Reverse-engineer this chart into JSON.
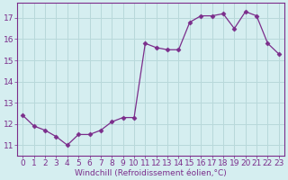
{
  "x": [
    0,
    1,
    2,
    3,
    4,
    5,
    6,
    7,
    8,
    9,
    10,
    11,
    12,
    13,
    14,
    15,
    16,
    17,
    18,
    19,
    20,
    21,
    22,
    23
  ],
  "y": [
    12.4,
    11.9,
    11.7,
    11.4,
    11.0,
    11.5,
    11.5,
    11.7,
    12.1,
    12.3,
    12.3,
    15.8,
    15.6,
    15.5,
    15.5,
    16.8,
    17.1,
    17.1,
    17.2,
    16.5,
    17.3,
    17.1,
    15.8,
    15.3
  ],
  "line_color": "#7b2d8b",
  "marker": "D",
  "marker_size": 2.5,
  "bg_color": "#d5eef0",
  "grid_color": "#b8d8da",
  "xlabel": "Windchill (Refroidissement éolien,°C)",
  "ylim": [
    10.5,
    17.7
  ],
  "xlim": [
    -0.5,
    23.5
  ],
  "yticks": [
    11,
    12,
    13,
    14,
    15,
    16,
    17
  ],
  "xticks": [
    0,
    1,
    2,
    3,
    4,
    5,
    6,
    7,
    8,
    9,
    10,
    11,
    12,
    13,
    14,
    15,
    16,
    17,
    18,
    19,
    20,
    21,
    22,
    23
  ],
  "xlabel_fontsize": 6.5,
  "tick_fontsize": 6.5,
  "tick_color": "#7b2d8b"
}
